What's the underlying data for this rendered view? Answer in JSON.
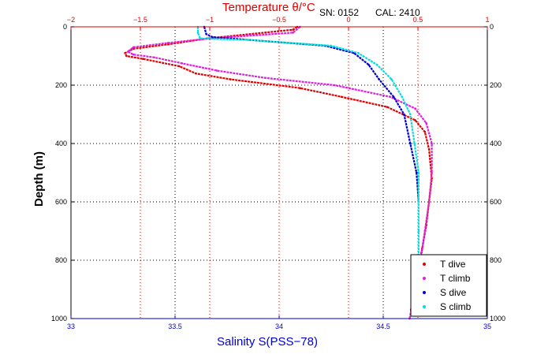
{
  "chart_data": {
    "type": "line",
    "title": "",
    "meta_sn": "SN: 0152",
    "meta_cal": "CAL: 2410",
    "ylabel": "Depth (m)",
    "xlabel_bottom": "Salinity S(PSS−78)",
    "xlabel_top": "Temperature θ/°C",
    "ylim": [
      0,
      1000
    ],
    "y_reversed": true,
    "xlim_bottom": [
      33,
      35
    ],
    "xlim_top": [
      -2,
      1
    ],
    "y_ticks": [
      "0",
      "200",
      "400",
      "600",
      "800",
      "1000"
    ],
    "x_bottom_ticks": [
      "33",
      "33.5",
      "34",
      "34.5",
      "35"
    ],
    "x_top_ticks": [
      "−2",
      "−1.5",
      "−1",
      "−0.5",
      "0",
      "0.5",
      "1"
    ],
    "grid": true,
    "legend_position": "bottom-right",
    "series": [
      {
        "name": "T dive",
        "axis": "top",
        "color": "#e00000",
        "x": [
          -0.37,
          -0.4,
          -1.02,
          -1.3,
          -1.55,
          -1.61,
          -1.6,
          -1.48,
          -1.22,
          -1.1,
          -0.85,
          -0.35,
          -0.05,
          0.28,
          0.48,
          0.55,
          0.58,
          0.6,
          0.58,
          0.56,
          0.53,
          0.49,
          0.45
        ],
        "y": [
          0,
          10,
          40,
          60,
          75,
          90,
          100,
          110,
          135,
          160,
          180,
          210,
          240,
          275,
          320,
          360,
          420,
          520,
          600,
          680,
          760,
          860,
          970
        ]
      },
      {
        "name": "T climb",
        "axis": "top",
        "color": "#e020e0",
        "x": [
          -0.35,
          -0.4,
          -1.0,
          -1.3,
          -1.55,
          -1.59,
          -1.55,
          -1.4,
          -1.2,
          -0.95,
          -0.6,
          -0.1,
          0.3,
          0.48,
          0.56,
          0.6,
          0.6,
          0.58,
          0.55,
          0.52,
          0.48,
          0.44
        ],
        "y": [
          0,
          20,
          40,
          55,
          70,
          85,
          95,
          105,
          125,
          150,
          175,
          200,
          240,
          280,
          330,
          400,
          500,
          600,
          700,
          800,
          900,
          1000
        ]
      },
      {
        "name": "S dive",
        "axis": "bottom",
        "color": "#0000d0",
        "x": [
          33.64,
          33.65,
          33.68,
          33.95,
          34.22,
          34.36,
          34.43,
          34.48,
          34.55,
          34.6,
          34.63,
          34.66,
          34.67
        ],
        "y": [
          0,
          25,
          35,
          50,
          65,
          90,
          130,
          180,
          240,
          300,
          400,
          500,
          600
        ]
      },
      {
        "name": "S climb",
        "axis": "bottom",
        "color": "#00e0e0",
        "x": [
          33.61,
          33.61,
          33.62,
          33.85,
          34.25,
          34.38,
          34.47,
          34.54,
          34.59,
          34.63,
          34.65,
          34.67,
          34.67,
          34.67
        ],
        "y": [
          0,
          20,
          40,
          45,
          65,
          90,
          130,
          180,
          240,
          300,
          400,
          500,
          700,
          800
        ]
      }
    ]
  }
}
